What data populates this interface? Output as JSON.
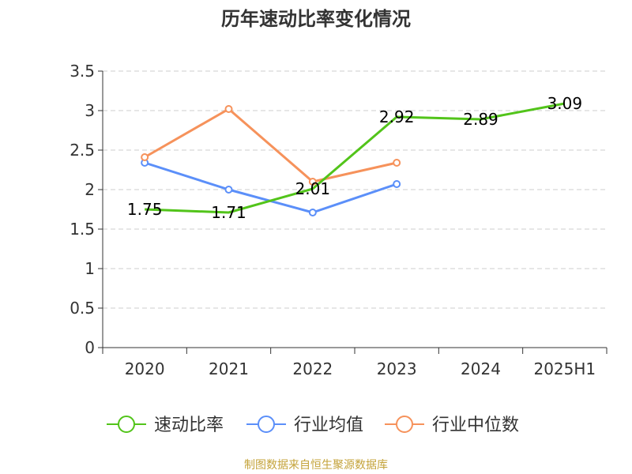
{
  "chart_data": {
    "type": "line",
    "title": "历年速动比率变化情况",
    "categories": [
      "2020",
      "2021",
      "2022",
      "2023",
      "2024",
      "2025H1"
    ],
    "y_ticks": [
      "0",
      "0.5",
      "1",
      "1.5",
      "2",
      "2.5",
      "3",
      "3.5"
    ],
    "ylim": [
      0,
      3.5
    ],
    "grid": true,
    "legend_position": "bottom",
    "series": [
      {
        "name": "速动比率",
        "color": "#52c41a",
        "values": [
          1.75,
          1.71,
          2.01,
          2.92,
          2.89,
          3.09
        ],
        "labels": [
          "1.75",
          "1.71",
          "2.01",
          "2.92",
          "2.89",
          "3.09"
        ]
      },
      {
        "name": "行业均值",
        "color": "#5b8ff9",
        "values": [
          2.34,
          2.0,
          1.71,
          2.07,
          null,
          null
        ]
      },
      {
        "name": "行业中位数",
        "color": "#f6925b",
        "values": [
          2.41,
          3.02,
          2.1,
          2.34,
          null,
          null
        ]
      }
    ]
  },
  "source_text": "制图数据来自恒生聚源数据库"
}
